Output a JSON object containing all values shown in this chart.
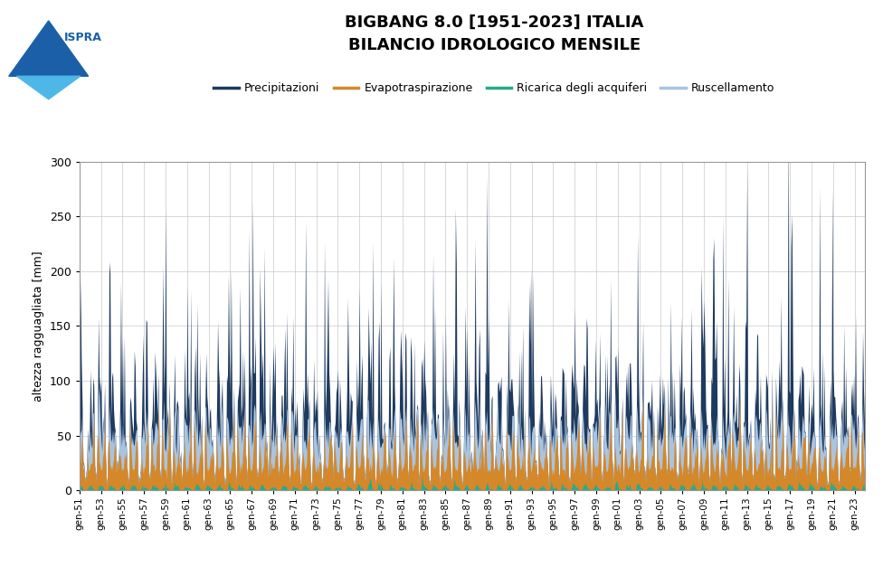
{
  "title_line1": "BIGBANG 8.0 [1951-2023] ITALIA",
  "title_line2": "BILANCIO IDROLOGICO MENSILE",
  "ylabel": "altezza ragguagliata [mm]",
  "ylim": [
    0,
    300
  ],
  "yticks": [
    0,
    50,
    100,
    150,
    200,
    250,
    300
  ],
  "series_labels": [
    "Precipitazioni",
    "Evapotraspirazione",
    "Ricarica degli acquiferi",
    "Ruscellamento"
  ],
  "series_colors": [
    "#1e3a5f",
    "#d4882a",
    "#2aaa8a",
    "#a8c4e0"
  ],
  "background_color": "#ffffff",
  "grid_color": "#bbbbbb",
  "start_year": 1951,
  "end_year": 2023,
  "tick_step_years": 2
}
